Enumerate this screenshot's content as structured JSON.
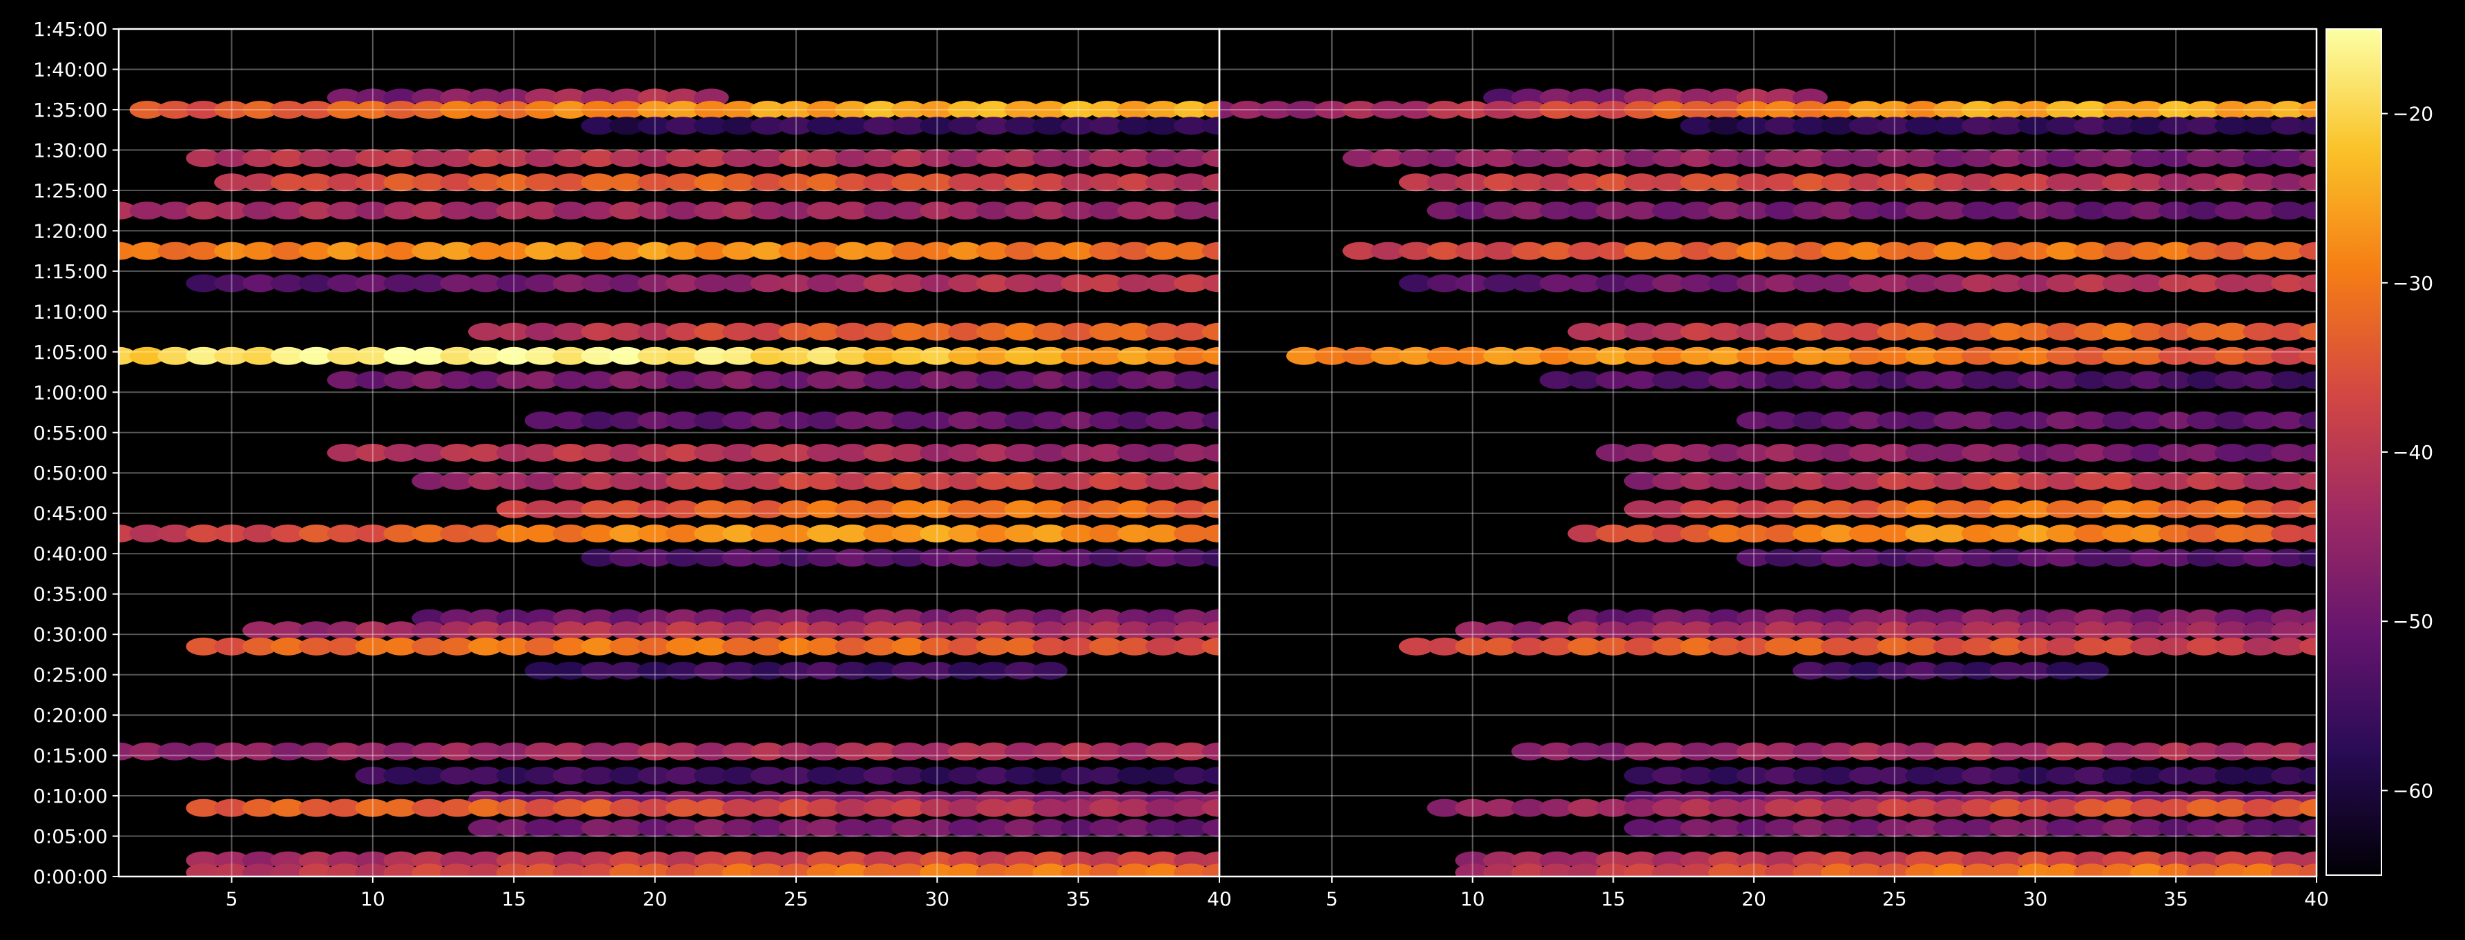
{
  "chart_data": {
    "type": "heatmap",
    "title": "",
    "xlabel": "",
    "ylabel": "",
    "background_color": "#000000",
    "grid": true,
    "colormap": "inferno",
    "colorbar": {
      "range": [
        -65,
        -15
      ],
      "ticks": [
        -20,
        -30,
        -40,
        -50,
        -60
      ],
      "tick_labels": [
        "−20",
        "−30",
        "−40",
        "−50",
        "−60"
      ],
      "stops": [
        "#000004",
        "#280b54",
        "#65156e",
        "#9f2a63",
        "#d44842",
        "#f57d15",
        "#fac228",
        "#fcffa4"
      ]
    },
    "time_ticks": [
      "0:00:00",
      "0:05:00",
      "0:10:00",
      "0:15:00",
      "0:20:00",
      "0:25:00",
      "0:30:00",
      "0:35:00",
      "0:40:00",
      "0:45:00",
      "0:50:00",
      "0:55:00",
      "1:00:00",
      "1:05:00",
      "1:10:00",
      "1:15:00",
      "1:20:00",
      "1:25:00",
      "1:30:00",
      "1:35:00",
      "1:40:00",
      "1:45:00"
    ],
    "y_range_minutes": [
      0,
      105
    ],
    "panels": [
      {
        "x_range": [
          1,
          40
        ],
        "x_ticks": [
          "5",
          "10",
          "15",
          "20",
          "25",
          "30",
          "35",
          "40"
        ],
        "rows": [
          {
            "time_min": 96.5,
            "x_range": [
              9,
              22
            ],
            "peak_x": 20,
            "peak_db": -42,
            "base_db": -52
          },
          {
            "time_min": 95.0,
            "x_range": [
              2,
              40
            ],
            "peak_x": 33,
            "peak_db": -24,
            "base_db": -38
          },
          {
            "time_min": 93.0,
            "x_range": [
              18,
              40
            ],
            "peak_x": 30,
            "peak_db": -56,
            "base_db": -60
          },
          {
            "time_min": 89.0,
            "x_range": [
              4,
              40
            ],
            "peak_x": 14,
            "peak_db": -40,
            "base_db": -47
          },
          {
            "time_min": 86.0,
            "x_range": [
              5,
              40
            ],
            "peak_x": 20,
            "peak_db": -33,
            "base_db": -48
          },
          {
            "time_min": 82.5,
            "x_range": [
              1,
              40
            ],
            "peak_x": 8,
            "peak_db": -43,
            "base_db": -45
          },
          {
            "time_min": 77.5,
            "x_range": [
              1,
              40
            ],
            "peak_x": 18,
            "peak_db": -27,
            "base_db": -38
          },
          {
            "time_min": 73.5,
            "x_range": [
              4,
              40
            ],
            "peak_x": 38,
            "peak_db": -40,
            "base_db": -55
          },
          {
            "time_min": 67.5,
            "x_range": [
              14,
              40
            ],
            "peak_x": 33,
            "peak_db": -32,
            "base_db": -47
          },
          {
            "time_min": 64.5,
            "x_range": [
              1,
              40
            ],
            "peak_x": 14,
            "peak_db": -16,
            "base_db": -35
          },
          {
            "time_min": 61.5,
            "x_range": [
              9,
              40
            ],
            "peak_x": 20,
            "peak_db": -48,
            "base_db": -53
          },
          {
            "time_min": 56.5,
            "x_range": [
              16,
              40
            ],
            "peak_x": 30,
            "peak_db": -50,
            "base_db": -55
          },
          {
            "time_min": 52.5,
            "x_range": [
              9,
              40
            ],
            "peak_x": 19,
            "peak_db": -40,
            "base_db": -50
          },
          {
            "time_min": 49.0,
            "x_range": [
              12,
              40
            ],
            "peak_x": 30,
            "peak_db": -37,
            "base_db": -50
          },
          {
            "time_min": 45.5,
            "x_range": [
              15,
              40
            ],
            "peak_x": 31,
            "peak_db": -30,
            "base_db": -44
          },
          {
            "time_min": 42.5,
            "x_range": [
              1,
              40
            ],
            "peak_x": 28,
            "peak_db": -26,
            "base_db": -46
          },
          {
            "time_min": 39.5,
            "x_range": [
              18,
              40
            ],
            "peak_x": 30,
            "peak_db": -52,
            "base_db": -56
          },
          {
            "time_min": 32.0,
            "x_range": [
              12,
              40
            ],
            "peak_x": 30,
            "peak_db": -47,
            "base_db": -53
          },
          {
            "time_min": 30.5,
            "x_range": [
              6,
              40
            ],
            "peak_x": 25,
            "peak_db": -40,
            "base_db": -50
          },
          {
            "time_min": 28.5,
            "x_range": [
              4,
              40
            ],
            "peak_x": 19,
            "peak_db": -30,
            "base_db": -42
          },
          {
            "time_min": 25.5,
            "x_range": [
              16,
              34
            ],
            "peak_x": 26,
            "peak_db": -55,
            "base_db": -58
          },
          {
            "time_min": 15.5,
            "x_range": [
              1,
              40
            ],
            "peak_x": 31,
            "peak_db": -42,
            "base_db": -48
          },
          {
            "time_min": 12.5,
            "x_range": [
              10,
              40
            ],
            "peak_x": 20,
            "peak_db": -55,
            "base_db": -59
          },
          {
            "time_min": 9.5,
            "x_range": [
              14,
              40
            ],
            "peak_x": 30,
            "peak_db": -47,
            "base_db": -53
          },
          {
            "time_min": 8.5,
            "x_range": [
              4,
              40
            ],
            "peak_x": 10,
            "peak_db": -33,
            "base_db": -46
          },
          {
            "time_min": 6.0,
            "x_range": [
              14,
              40
            ],
            "peak_x": 25,
            "peak_db": -48,
            "base_db": -54
          },
          {
            "time_min": 2.0,
            "x_range": [
              4,
              40
            ],
            "peak_x": 30,
            "peak_db": -37,
            "base_db": -47
          },
          {
            "time_min": 0.5,
            "x_range": [
              4,
              40
            ],
            "peak_x": 32,
            "peak_db": -30,
            "base_db": -45
          }
        ]
      },
      {
        "x_range": [
          1,
          40
        ],
        "x_ticks": [
          "5",
          "10",
          "15",
          "20",
          "25",
          "30",
          "35",
          "40"
        ],
        "rows": [
          {
            "time_min": 96.5,
            "x_range": [
              11,
              22
            ],
            "peak_x": 20,
            "peak_db": -43,
            "base_db": -55
          },
          {
            "time_min": 95.0,
            "x_range": [
              1,
              40
            ],
            "peak_x": 33,
            "peak_db": -24,
            "base_db": -52
          },
          {
            "time_min": 93.0,
            "x_range": [
              18,
              40
            ],
            "peak_x": 30,
            "peak_db": -56,
            "base_db": -60
          },
          {
            "time_min": 89.0,
            "x_range": [
              6,
              40
            ],
            "peak_x": 14,
            "peak_db": -45,
            "base_db": -52
          },
          {
            "time_min": 86.0,
            "x_range": [
              8,
              40
            ],
            "peak_x": 20,
            "peak_db": -36,
            "base_db": -50
          },
          {
            "time_min": 82.5,
            "x_range": [
              9,
              40
            ],
            "peak_x": 14,
            "peak_db": -48,
            "base_db": -52
          },
          {
            "time_min": 77.5,
            "x_range": [
              6,
              40
            ],
            "peak_x": 28,
            "peak_db": -30,
            "base_db": -44
          },
          {
            "time_min": 73.5,
            "x_range": [
              8,
              40
            ],
            "peak_x": 38,
            "peak_db": -40,
            "base_db": -55
          },
          {
            "time_min": 67.5,
            "x_range": [
              14,
              40
            ],
            "peak_x": 32,
            "peak_db": -32,
            "base_db": -47
          },
          {
            "time_min": 64.5,
            "x_range": [
              4,
              40
            ],
            "peak_x": 15,
            "peak_db": -27,
            "base_db": -40
          },
          {
            "time_min": 61.5,
            "x_range": [
              13,
              40
            ],
            "peak_x": 20,
            "peak_db": -52,
            "base_db": -56
          },
          {
            "time_min": 56.5,
            "x_range": [
              20,
              40
            ],
            "peak_x": 30,
            "peak_db": -50,
            "base_db": -55
          },
          {
            "time_min": 52.5,
            "x_range": [
              15,
              40
            ],
            "peak_x": 20,
            "peak_db": -45,
            "base_db": -52
          },
          {
            "time_min": 49.0,
            "x_range": [
              16,
              40
            ],
            "peak_x": 30,
            "peak_db": -38,
            "base_db": -52
          },
          {
            "time_min": 45.5,
            "x_range": [
              16,
              40
            ],
            "peak_x": 31,
            "peak_db": -30,
            "base_db": -47
          },
          {
            "time_min": 42.5,
            "x_range": [
              14,
              40
            ],
            "peak_x": 28,
            "peak_db": -27,
            "base_db": -48
          },
          {
            "time_min": 39.5,
            "x_range": [
              20,
              40
            ],
            "peak_x": 30,
            "peak_db": -52,
            "base_db": -56
          },
          {
            "time_min": 32.0,
            "x_range": [
              14,
              40
            ],
            "peak_x": 30,
            "peak_db": -47,
            "base_db": -53
          },
          {
            "time_min": 30.5,
            "x_range": [
              10,
              40
            ],
            "peak_x": 25,
            "peak_db": -42,
            "base_db": -50
          },
          {
            "time_min": 28.5,
            "x_range": [
              8,
              40
            ],
            "peak_x": 20,
            "peak_db": -33,
            "base_db": -45
          },
          {
            "time_min": 25.5,
            "x_range": [
              22,
              32
            ],
            "peak_x": 26,
            "peak_db": -55,
            "base_db": -58
          },
          {
            "time_min": 15.5,
            "x_range": [
              12,
              40
            ],
            "peak_x": 31,
            "peak_db": -42,
            "base_db": -50
          },
          {
            "time_min": 12.5,
            "x_range": [
              16,
              40
            ],
            "peak_x": 24,
            "peak_db": -55,
            "base_db": -59
          },
          {
            "time_min": 9.5,
            "x_range": [
              16,
              40
            ],
            "peak_x": 30,
            "peak_db": -47,
            "base_db": -53
          },
          {
            "time_min": 8.5,
            "x_range": [
              9,
              40
            ],
            "peak_x": 38,
            "peak_db": -34,
            "base_db": -47
          },
          {
            "time_min": 6.0,
            "x_range": [
              16,
              40
            ],
            "peak_x": 25,
            "peak_db": -48,
            "base_db": -54
          },
          {
            "time_min": 2.0,
            "x_range": [
              10,
              40
            ],
            "peak_x": 30,
            "peak_db": -37,
            "base_db": -48
          },
          {
            "time_min": 0.5,
            "x_range": [
              10,
              40
            ],
            "peak_x": 32,
            "peak_db": -30,
            "base_db": -46
          }
        ]
      }
    ]
  }
}
